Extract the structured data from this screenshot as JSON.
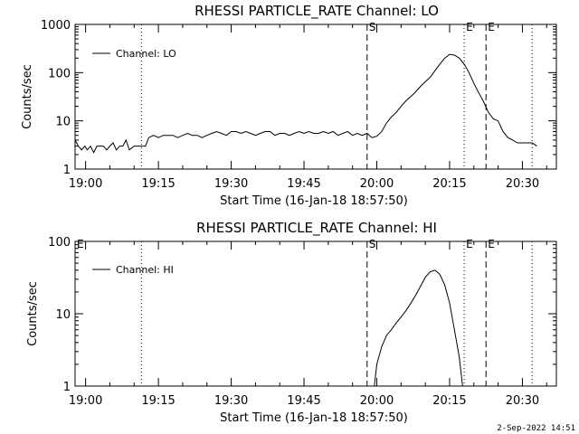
{
  "chart_data": [
    {
      "type": "line",
      "title": "RHESSI PARTICLE_RATE Channel: LO",
      "xlabel": "Start Time (16-Jan-18 18:57:50)",
      "ylabel": "Counts/sec",
      "yscale": "log",
      "ylim": [
        1,
        1000
      ],
      "xlim": [
        "18:57:50",
        "20:37:00"
      ],
      "x_ticks": [
        "19:00",
        "19:15",
        "19:30",
        "19:45",
        "20:00",
        "20:15",
        "20:30"
      ],
      "y_ticks": [
        "1",
        "10",
        "100",
        "1000"
      ],
      "legend": "top-left",
      "series": [
        {
          "name": "Channel: LO",
          "x": [
            "18:57:50",
            "18:58:30",
            "18:59:10",
            "18:59:50",
            "19:00:20",
            "19:01:00",
            "19:01:40",
            "19:02:20",
            "19:03:00",
            "19:03:40",
            "19:04:20",
            "19:05:00",
            "19:05:40",
            "19:06:20",
            "19:07:00",
            "19:07:40",
            "19:08:20",
            "19:09:00",
            "19:10:00",
            "19:11:00",
            "19:11:40",
            "19:12:20",
            "19:13:00",
            "19:14:00",
            "19:15:00",
            "19:16:00",
            "19:17:00",
            "19:18:00",
            "19:19:00",
            "19:20:00",
            "19:21:00",
            "19:22:00",
            "19:23:00",
            "19:24:00",
            "19:25:00",
            "19:26:00",
            "19:27:00",
            "19:28:00",
            "19:29:00",
            "19:30:00",
            "19:31:00",
            "19:32:00",
            "19:33:00",
            "19:34:00",
            "19:35:00",
            "19:36:00",
            "19:37:00",
            "19:38:00",
            "19:39:00",
            "19:40:00",
            "19:41:00",
            "19:42:00",
            "19:43:00",
            "19:44:00",
            "19:45:00",
            "19:46:00",
            "19:47:00",
            "19:48:00",
            "19:49:00",
            "19:50:00",
            "19:51:00",
            "19:52:00",
            "19:53:00",
            "19:54:00",
            "19:55:00",
            "19:56:00",
            "19:57:00",
            "19:58:00",
            "19:59:00",
            "20:00:00",
            "20:01:00",
            "20:02:00",
            "20:03:00",
            "20:04:00",
            "20:05:00",
            "20:06:00",
            "20:07:00",
            "20:08:00",
            "20:09:00",
            "20:10:00",
            "20:11:00",
            "20:12:00",
            "20:13:00",
            "20:14:00",
            "20:15:00",
            "20:16:00",
            "20:17:00",
            "20:18:00",
            "20:19:00",
            "20:20:00",
            "20:21:00",
            "20:22:00",
            "20:23:00",
            "20:24:00",
            "20:25:00",
            "20:26:00",
            "20:27:00",
            "20:28:00",
            "20:29:00",
            "20:30:00",
            "20:31:00",
            "20:32:00",
            "20:33:00"
          ],
          "values": [
            4,
            3,
            2.5,
            3,
            2.5,
            3,
            2.2,
            3,
            3,
            3,
            2.5,
            3,
            3.5,
            2.5,
            3,
            3,
            4,
            2.5,
            3,
            3,
            3,
            3,
            4.5,
            5,
            4.5,
            5,
            5,
            5,
            4.5,
            5,
            5.5,
            5,
            5,
            4.5,
            5,
            5.5,
            6,
            5.5,
            5,
            6,
            6,
            5.5,
            6,
            5.5,
            5,
            5.5,
            6,
            6,
            5,
            5.5,
            5.5,
            5,
            5.5,
            6,
            5.5,
            6,
            5.5,
            5.5,
            6,
            5.5,
            6,
            5,
            5.5,
            6,
            5,
            5.5,
            5,
            5.5,
            4.5,
            4.8,
            6,
            9,
            12,
            15,
            20,
            26,
            32,
            40,
            52,
            65,
            80,
            110,
            150,
            200,
            240,
            230,
            200,
            150,
            100,
            60,
            38,
            25,
            15,
            11,
            10,
            6,
            4.5,
            4,
            3.5,
            3.5,
            3.5,
            3.5,
            3
          ]
        }
      ],
      "markers": [
        {
          "label": "S",
          "time": "19:58:00",
          "style": "dashed"
        },
        {
          "label": "E",
          "time": "20:22:30",
          "style": "dashed"
        },
        {
          "label": "",
          "time": "19:11:30",
          "style": "dotted"
        },
        {
          "label": "E",
          "time": "20:18:00",
          "style": "dotted"
        },
        {
          "label": "",
          "time": "20:32:00",
          "style": "dotted"
        }
      ]
    },
    {
      "type": "line",
      "title": "RHESSI PARTICLE_RATE Channel: HI",
      "xlabel": "Start Time (16-Jan-18 18:57:50)",
      "ylabel": "Counts/sec",
      "yscale": "log",
      "ylim": [
        1,
        100
      ],
      "xlim": [
        "18:57:50",
        "20:37:00"
      ],
      "x_ticks": [
        "19:00",
        "19:15",
        "19:30",
        "19:45",
        "20:00",
        "20:15",
        "20:30"
      ],
      "y_ticks": [
        "1",
        "10",
        "100"
      ],
      "legend": "top-left",
      "series": [
        {
          "name": "Channel: HI",
          "x": [
            "19:59:30",
            "20:00:00",
            "20:01:00",
            "20:02:00",
            "20:03:00",
            "20:04:00",
            "20:05:00",
            "20:06:00",
            "20:07:00",
            "20:08:00",
            "20:09:00",
            "20:10:00",
            "20:11:00",
            "20:12:00",
            "20:13:00",
            "20:14:00",
            "20:15:00",
            "20:16:00",
            "20:17:00",
            "20:17:40"
          ],
          "values": [
            1,
            2,
            3.5,
            5,
            6,
            7.5,
            9,
            11,
            14,
            18,
            24,
            32,
            38,
            40,
            35,
            25,
            14,
            6,
            2.5,
            1
          ]
        }
      ],
      "markers": [
        {
          "label": "S",
          "time": "19:58:00",
          "style": "dashed"
        },
        {
          "label": "E",
          "time": "20:22:30",
          "style": "dashed"
        },
        {
          "label": "E",
          "time": "18:57:50",
          "style": "none"
        },
        {
          "label": "",
          "time": "19:11:30",
          "style": "dotted"
        },
        {
          "label": "E",
          "time": "20:18:00",
          "style": "dotted"
        },
        {
          "label": "",
          "time": "20:32:00",
          "style": "dotted"
        }
      ]
    }
  ],
  "legend_labels": [
    "Channel: LO",
    "Channel: HI"
  ],
  "footer": {
    "timestamp": "2-Sep-2022 14:51"
  }
}
